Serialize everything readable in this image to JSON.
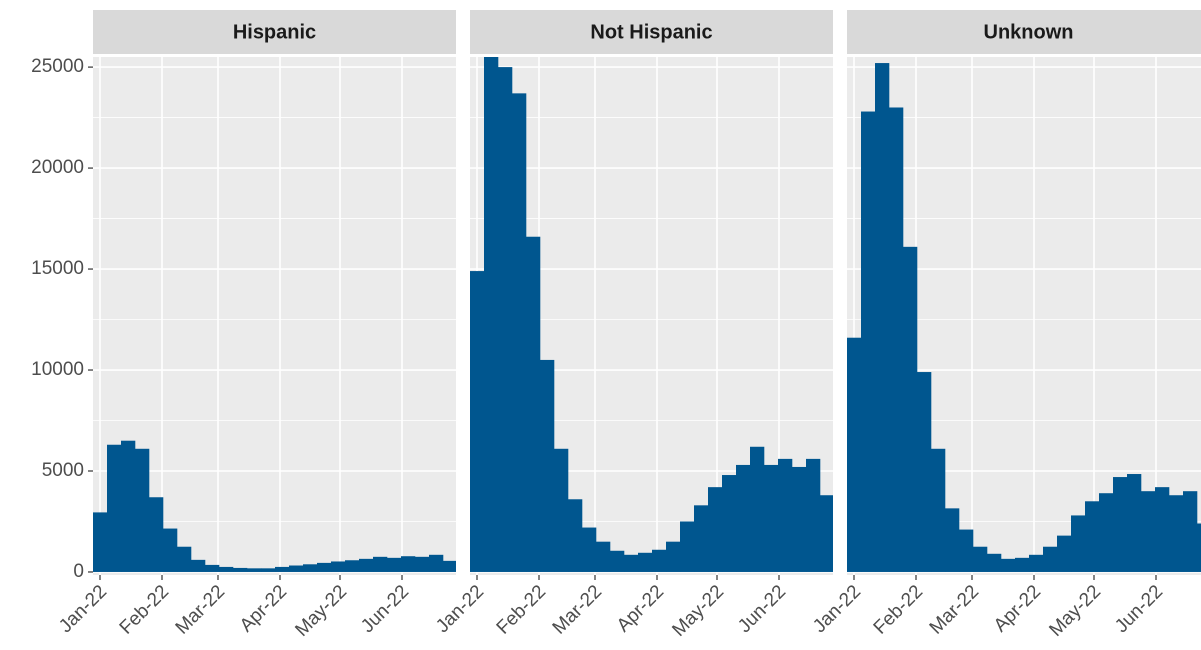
{
  "chart_data": [
    {
      "type": "histogram",
      "title": "Hispanic",
      "color": "#00568f",
      "bins": [
        -3.5,
        3.5,
        10.5,
        17.5,
        24.5,
        31.5,
        38.5,
        45.5,
        52.5,
        59.5,
        66.5,
        73.5,
        80.5,
        87.5,
        94.5,
        101.5,
        108.5,
        115.5,
        122.5,
        129.5,
        136.5,
        143.5,
        150.5,
        157.5,
        164.5,
        171.5,
        178.5
      ],
      "values": [
        2950,
        6300,
        6500,
        6100,
        3700,
        2150,
        1250,
        600,
        350,
        250,
        200,
        180,
        180,
        250,
        320,
        380,
        450,
        520,
        580,
        650,
        750,
        700,
        780,
        750,
        850,
        550
      ],
      "xlim": [
        -3.5,
        178
      ],
      "ylim": [
        -150,
        25500
      ],
      "xticks": [
        {
          "value": 0,
          "label": "Jan-22"
        },
        {
          "value": 31,
          "label": "Feb-22"
        },
        {
          "value": 59,
          "label": "Mar-22"
        },
        {
          "value": 90,
          "label": "Apr-22"
        },
        {
          "value": 120,
          "label": "May-22"
        },
        {
          "value": 151,
          "label": "Jun-22"
        }
      ],
      "yticks": [
        0,
        5000,
        10000,
        15000,
        20000,
        25000
      ],
      "grid": true
    },
    {
      "type": "histogram",
      "title": "Not Hispanic",
      "color": "#00568f",
      "bins": [
        -3.5,
        3.5,
        10.5,
        17.5,
        24.5,
        31.5,
        38.5,
        45.5,
        52.5,
        59.5,
        66.5,
        73.5,
        80.5,
        87.5,
        94.5,
        101.5,
        108.5,
        115.5,
        122.5,
        129.5,
        136.5,
        143.5,
        150.5,
        157.5,
        164.5,
        171.5,
        178.5
      ],
      "values": [
        14900,
        25600,
        25000,
        23700,
        16600,
        10500,
        6100,
        3600,
        2200,
        1500,
        1050,
        850,
        950,
        1100,
        1500,
        2500,
        3300,
        4200,
        4800,
        5300,
        6200,
        5300,
        5600,
        5200,
        5600,
        3800
      ],
      "xlim": [
        -3.5,
        178
      ],
      "ylim": [
        -150,
        25500
      ],
      "xticks": [
        {
          "value": 0,
          "label": "Jan-22"
        },
        {
          "value": 31,
          "label": "Feb-22"
        },
        {
          "value": 59,
          "label": "Mar-22"
        },
        {
          "value": 90,
          "label": "Apr-22"
        },
        {
          "value": 120,
          "label": "May-22"
        },
        {
          "value": 151,
          "label": "Jun-22"
        }
      ],
      "yticks": [
        0,
        5000,
        10000,
        15000,
        20000,
        25000
      ],
      "grid": true
    },
    {
      "type": "histogram",
      "title": "Unknown",
      "color": "#00568f",
      "bins": [
        -3.5,
        3.5,
        10.5,
        17.5,
        24.5,
        31.5,
        38.5,
        45.5,
        52.5,
        59.5,
        66.5,
        73.5,
        80.5,
        87.5,
        94.5,
        101.5,
        108.5,
        115.5,
        122.5,
        129.5,
        136.5,
        143.5,
        150.5,
        157.5,
        164.5,
        171.5,
        178.5
      ],
      "values": [
        11600,
        22800,
        25200,
        23000,
        16100,
        9900,
        6100,
        3150,
        2100,
        1250,
        900,
        650,
        700,
        850,
        1250,
        1800,
        2800,
        3500,
        3900,
        4700,
        4850,
        4000,
        4200,
        3800,
        4000,
        2400
      ],
      "xlim": [
        -3.5,
        178
      ],
      "ylim": [
        -150,
        25500
      ],
      "xticks": [
        {
          "value": 0,
          "label": "Jan-22"
        },
        {
          "value": 31,
          "label": "Feb-22"
        },
        {
          "value": 59,
          "label": "Mar-22"
        },
        {
          "value": 90,
          "label": "Apr-22"
        },
        {
          "value": 120,
          "label": "May-22"
        },
        {
          "value": 151,
          "label": "Jun-22"
        }
      ],
      "yticks": [
        0,
        5000,
        10000,
        15000,
        20000,
        25000
      ],
      "grid": true
    }
  ]
}
